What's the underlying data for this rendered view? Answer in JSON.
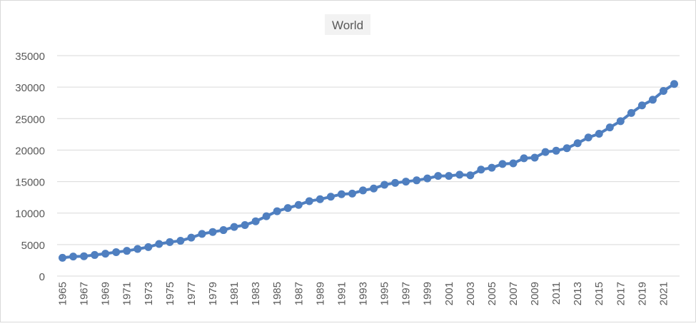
{
  "chart_data": {
    "type": "line",
    "title": "World",
    "xlabel": "",
    "ylabel": "",
    "ylim": [
      0,
      35000
    ],
    "yticks": [
      0,
      5000,
      10000,
      15000,
      20000,
      25000,
      30000,
      35000
    ],
    "grid": true,
    "legend": "none",
    "colors": {
      "series": "#4f7fc0",
      "grid": "#d9d9d9",
      "axis_text": "#595959",
      "title_bg": "#f2f2f2"
    },
    "x": [
      1965,
      1966,
      1967,
      1968,
      1969,
      1970,
      1971,
      1972,
      1973,
      1974,
      1975,
      1976,
      1977,
      1978,
      1979,
      1980,
      1981,
      1982,
      1983,
      1984,
      1985,
      1986,
      1987,
      1988,
      1989,
      1990,
      1991,
      1992,
      1993,
      1994,
      1995,
      1996,
      1997,
      1998,
      1999,
      2000,
      2001,
      2002,
      2003,
      2004,
      2005,
      2006,
      2007,
      2008,
      2009,
      2010,
      2011,
      2012,
      2013,
      2014,
      2015,
      2016,
      2017,
      2018,
      2019,
      2020,
      2021,
      2022
    ],
    "xtick_labels": [
      "1965",
      "1967",
      "1969",
      "1971",
      "1973",
      "1975",
      "1977",
      "1979",
      "1981",
      "1983",
      "1985",
      "1987",
      "1989",
      "1991",
      "1993",
      "1995",
      "1997",
      "1999",
      "2001",
      "2003",
      "2005",
      "2007",
      "2009",
      "2011",
      "2013",
      "2015",
      "2017",
      "2019",
      "2021"
    ],
    "series": [
      {
        "values": [
          2900,
          3100,
          3150,
          3350,
          3550,
          3800,
          4000,
          4300,
          4600,
          5100,
          5400,
          5600,
          6100,
          6700,
          7000,
          7300,
          7800,
          8100,
          8700,
          9500,
          10300,
          10800,
          11300,
          11900,
          12200,
          12600,
          13000,
          13100,
          13600,
          13900,
          14500,
          14800,
          15000,
          15200,
          15500,
          15900,
          15900,
          16100,
          16000,
          16900,
          17200,
          17800,
          17900,
          18700,
          18800,
          19700,
          19900,
          20300,
          21100,
          22000,
          22600,
          23600,
          24600,
          25900,
          27100,
          28000,
          29400,
          30500
        ]
      }
    ]
  }
}
